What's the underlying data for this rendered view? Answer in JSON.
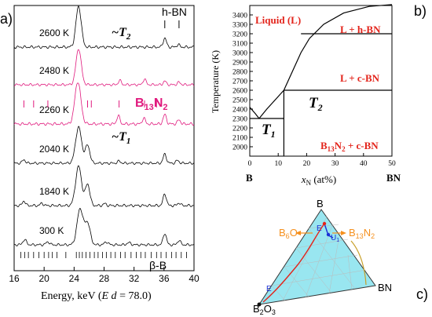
{
  "panels": {
    "a": "a)",
    "b": "b)",
    "c": "c)"
  },
  "colors": {
    "black": "#000000",
    "magenta": "#e0197d",
    "red": "#e3241b",
    "ternary_fill": "#99e6f0",
    "orange": "#f5901e",
    "blue": "#1a2fd6",
    "olive": "#c8a02a"
  },
  "chart_data": [
    {
      "id": "xrd",
      "type": "line",
      "xlabel": "Energy, keV (",
      "xlabel_italic": "E d",
      "xlabel_suffix": " = 78.0)",
      "xlim": [
        16,
        40
      ],
      "xticks": [
        "16",
        "20",
        "24",
        "28",
        "32",
        "36",
        "40"
      ],
      "series": [
        {
          "name": "2600 K",
          "color": "#000000",
          "peaks": [
            [
              24.6,
              1.0,
              0.35
            ],
            [
              36.1,
              0.22,
              0.22
            ],
            [
              37.9,
              0.06,
              0.2
            ]
          ]
        },
        {
          "name": "2480 K",
          "color": "#e0197d",
          "peaks": [
            [
              24.6,
              1.0,
              0.35
            ],
            [
              30.1,
              0.12,
              0.2
            ],
            [
              33.4,
              0.16,
              0.2
            ],
            [
              36.1,
              0.1,
              0.2
            ],
            [
              38.0,
              0.07,
              0.2
            ]
          ]
        },
        {
          "name": "2260 K",
          "color": "#e0197d",
          "peaks": [
            [
              24.5,
              1.0,
              0.4
            ],
            [
              29.9,
              0.2,
              0.2
            ],
            [
              33.3,
              0.14,
              0.2
            ],
            [
              36.1,
              0.22,
              0.22
            ],
            [
              38.0,
              0.1,
              0.2
            ]
          ]
        },
        {
          "name": "2040 K",
          "color": "#000000",
          "peaks": [
            [
              17.3,
              0.1,
              0.2
            ],
            [
              24.6,
              1.0,
              0.4
            ],
            [
              25.8,
              0.5,
              0.3
            ],
            [
              30.0,
              0.06,
              0.2
            ],
            [
              36.1,
              0.25,
              0.22
            ],
            [
              37.8,
              0.08,
              0.2
            ]
          ]
        },
        {
          "name": "1840 K",
          "color": "#000000",
          "peaks": [
            [
              17.3,
              0.12,
              0.2
            ],
            [
              19.7,
              0.06,
              0.2
            ],
            [
              24.6,
              1.0,
              0.4
            ],
            [
              25.8,
              0.55,
              0.3
            ],
            [
              28.1,
              0.05,
              0.2
            ],
            [
              36.1,
              0.3,
              0.22
            ],
            [
              38.0,
              0.07,
              0.2
            ]
          ]
        },
        {
          "name": "300 K",
          "color": "#000000",
          "peaks": [
            [
              17.4,
              0.14,
              0.25
            ],
            [
              20.5,
              0.08,
              0.25
            ],
            [
              24.8,
              1.0,
              0.4
            ],
            [
              25.8,
              0.6,
              0.35
            ],
            [
              28.3,
              0.08,
              0.25
            ],
            [
              31.3,
              0.06,
              0.25
            ],
            [
              36.1,
              0.32,
              0.22
            ],
            [
              38.0,
              0.12,
              0.22
            ]
          ]
        }
      ],
      "annotations": {
        "hbn": "h-BN",
        "t2": "~",
        "t2_sym": "T",
        "t2_sub": "2",
        "t1": "~",
        "t1_sym": "T",
        "t1_sub": "1",
        "b13n2": "B",
        "b13n2_a": "13",
        "b13n2_b": "N",
        "b13n2_c": "2",
        "beta_b": "β-B"
      },
      "hbn_ticks": [
        36.1,
        38.0
      ],
      "b13n2_ticks": [
        17.3,
        18.6,
        20.5,
        25.8,
        26.3,
        30.0,
        33.4,
        35.0
      ],
      "beta_b_ticks": [
        16.9,
        17.4,
        17.9,
        18.6,
        19.3,
        20.0,
        20.6,
        21.1,
        21.7,
        22.9,
        24.3,
        24.7,
        25.1,
        25.6,
        26.1,
        26.7,
        27.2,
        27.8,
        28.3,
        28.9,
        29.5,
        30.2,
        30.8,
        31.6,
        32.3,
        32.9,
        33.5,
        34.3,
        35.0,
        35.6,
        36.3,
        37.0,
        37.6,
        38.3,
        39.0
      ]
    },
    {
      "id": "phase",
      "type": "line",
      "ylabel": "Temperature (K)",
      "xlabel_sym": "x",
      "xlabel_sub": "N",
      "xlabel_unit": " (at%)",
      "xlim": [
        0,
        50
      ],
      "ylim": [
        1900,
        3500
      ],
      "xticks": [
        "0",
        "10",
        "20",
        "30",
        "40",
        "50"
      ],
      "yticks": [
        "2000",
        "2100",
        "2200",
        "2300",
        "2400",
        "2500",
        "2600",
        "2700",
        "2800",
        "2900",
        "3000",
        "3100",
        "3200",
        "3300",
        "3400"
      ],
      "end_labels": {
        "left": "B",
        "right": "BN"
      },
      "regions": {
        "liquid": "Liquid (L)",
        "l_hbn": "L + h-BN",
        "l_cbn": "L + c-BN",
        "t2": "T",
        "t2_sub": "2",
        "t1": "T",
        "t1_sub": "1",
        "b13": "B",
        "b13_sub": "13",
        "b13_n": "N",
        "b13_n_sub": "2",
        "b13_rest": " + c-BN"
      },
      "liquidus": [
        [
          12,
          2600
        ],
        [
          15,
          2800
        ],
        [
          18,
          3000
        ],
        [
          21,
          3150
        ],
        [
          26,
          3300
        ],
        [
          33,
          3420
        ],
        [
          42,
          3490
        ],
        [
          50,
          3510
        ]
      ],
      "left_liquidus": [
        [
          0,
          2420
        ],
        [
          2,
          2350
        ],
        [
          3.3,
          2300
        ]
      ],
      "eutectic_arc": [
        [
          3.3,
          2300
        ],
        [
          6,
          2400
        ],
        [
          9,
          2500
        ],
        [
          12,
          2600
        ]
      ],
      "hbn_cbn_line": 3200,
      "t2_line": 2600,
      "t1_line": 2300,
      "t1_x": 12
    },
    {
      "id": "ternary",
      "type": "diagram",
      "vertices": {
        "top": "B",
        "left_sym": "B",
        "left_a": "2",
        "left_b": "O",
        "left_c": "3",
        "right": "BN"
      },
      "labels": {
        "b6o": "B",
        "b6o_sub": "6",
        "b6o_o": "O",
        "b13n2": "B",
        "b13n2_sub": "13",
        "b13n2_n": "N",
        "b13n2_sub2": "2",
        "e_top": "E",
        "u1": "U",
        "u1_sub": "1",
        "e_bottom": "E"
      }
    }
  ]
}
